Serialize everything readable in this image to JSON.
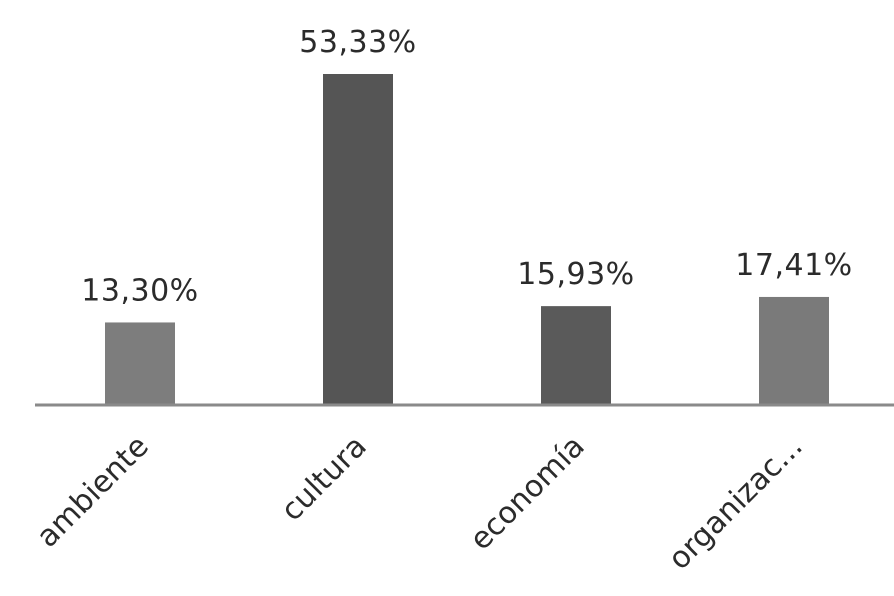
{
  "chart_data": {
    "type": "bar",
    "title": "",
    "xlabel": "",
    "ylabel": "",
    "categories": [
      "ambiente",
      "cultura",
      "economía",
      "organizac..."
    ],
    "values": [
      13.3,
      53.33,
      15.93,
      17.41
    ],
    "data_labels": [
      "13,30%",
      "53,33%",
      "15,93%",
      "17,41%"
    ],
    "ylim": [
      0,
      53.33
    ],
    "grid": false,
    "legend": "none",
    "bar_colors": [
      "#7d7d7d",
      "#555555",
      "#5a5a5a",
      "#7a7a7a"
    ],
    "axis_color": "#8a8a8a",
    "text_color": "#2b2b2b"
  }
}
